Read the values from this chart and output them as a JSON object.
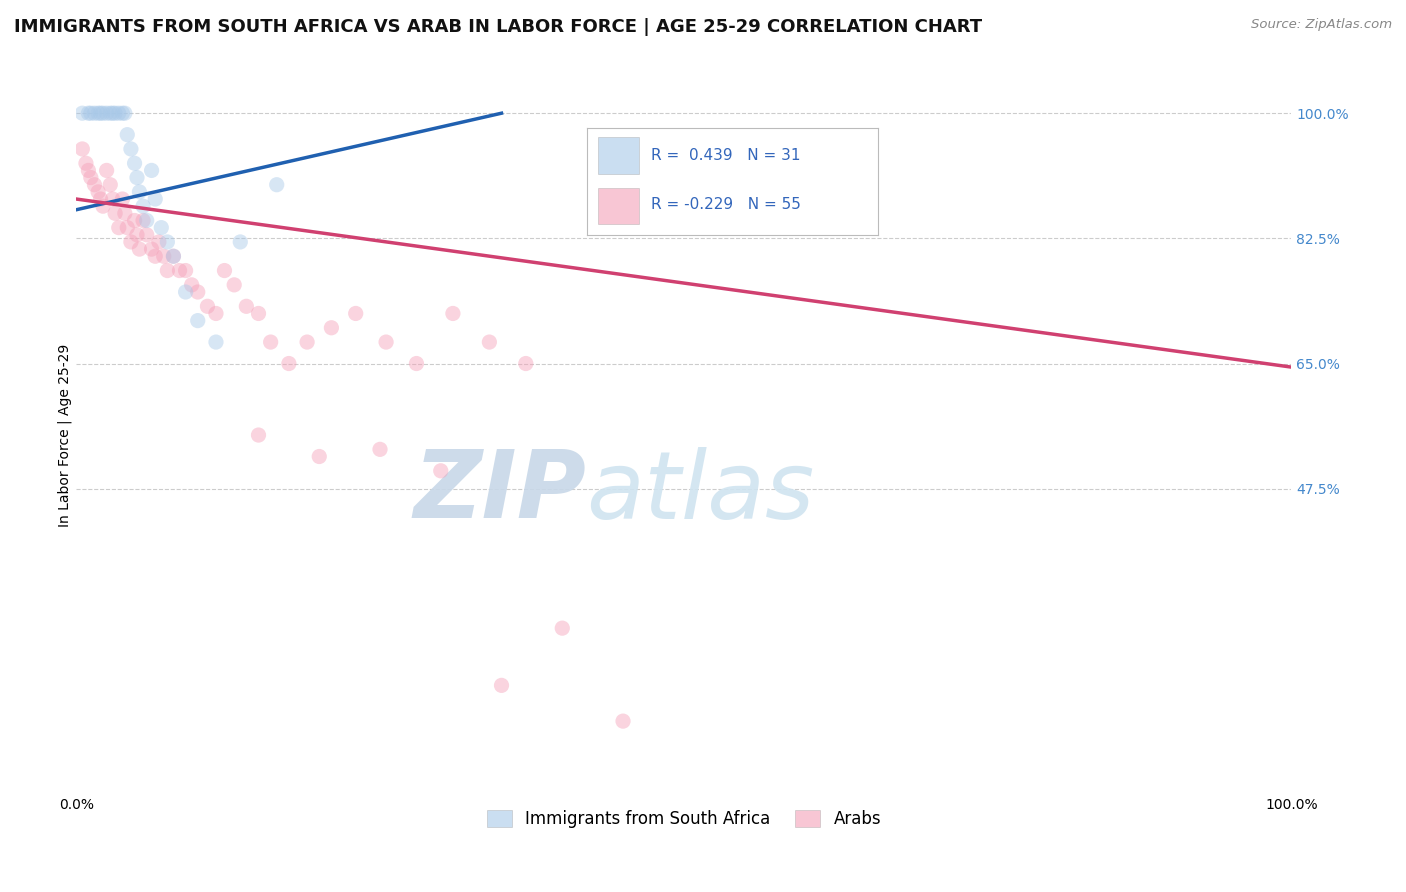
{
  "title": "IMMIGRANTS FROM SOUTH AFRICA VS ARAB IN LABOR FORCE | AGE 25-29 CORRELATION CHART",
  "source": "Source: ZipAtlas.com",
  "ylabel": "In Labor Force | Age 25-29",
  "R_blue": 0.439,
  "N_blue": 31,
  "R_pink": -0.229,
  "N_pink": 55,
  "blue_color": "#a8c8e8",
  "pink_color": "#f4a0b8",
  "blue_line_color": "#2060b0",
  "pink_line_color": "#d04070",
  "legend_blue_label": "Immigrants from South Africa",
  "legend_pink_label": "Arabs",
  "blue_scatter_x": [
    0.005,
    0.01,
    0.012,
    0.015,
    0.018,
    0.02,
    0.022,
    0.025,
    0.028,
    0.03,
    0.032,
    0.035,
    0.038,
    0.04,
    0.042,
    0.045,
    0.048,
    0.05,
    0.052,
    0.055,
    0.058,
    0.062,
    0.065,
    0.07,
    0.075,
    0.08,
    0.09,
    0.1,
    0.115,
    0.135,
    0.165
  ],
  "blue_scatter_y": [
    1.0,
    1.0,
    1.0,
    1.0,
    1.0,
    1.0,
    1.0,
    1.0,
    1.0,
    1.0,
    1.0,
    1.0,
    1.0,
    1.0,
    0.97,
    0.95,
    0.93,
    0.91,
    0.89,
    0.87,
    0.85,
    0.92,
    0.88,
    0.84,
    0.82,
    0.8,
    0.75,
    0.71,
    0.68,
    0.82,
    0.9
  ],
  "pink_scatter_x": [
    0.005,
    0.008,
    0.01,
    0.012,
    0.015,
    0.018,
    0.02,
    0.022,
    0.025,
    0.028,
    0.03,
    0.032,
    0.035,
    0.038,
    0.04,
    0.042,
    0.045,
    0.048,
    0.05,
    0.052,
    0.055,
    0.058,
    0.062,
    0.065,
    0.068,
    0.072,
    0.075,
    0.08,
    0.085,
    0.09,
    0.095,
    0.1,
    0.108,
    0.115,
    0.122,
    0.13,
    0.14,
    0.15,
    0.16,
    0.175,
    0.19,
    0.21,
    0.23,
    0.255,
    0.28,
    0.31,
    0.34,
    0.37,
    0.15,
    0.2,
    0.25,
    0.3,
    0.35,
    0.4,
    0.45
  ],
  "pink_scatter_y": [
    0.95,
    0.93,
    0.92,
    0.91,
    0.9,
    0.89,
    0.88,
    0.87,
    0.92,
    0.9,
    0.88,
    0.86,
    0.84,
    0.88,
    0.86,
    0.84,
    0.82,
    0.85,
    0.83,
    0.81,
    0.85,
    0.83,
    0.81,
    0.8,
    0.82,
    0.8,
    0.78,
    0.8,
    0.78,
    0.78,
    0.76,
    0.75,
    0.73,
    0.72,
    0.78,
    0.76,
    0.73,
    0.72,
    0.68,
    0.65,
    0.68,
    0.7,
    0.72,
    0.68,
    0.65,
    0.72,
    0.68,
    0.65,
    0.55,
    0.52,
    0.53,
    0.5,
    0.2,
    0.28,
    0.15
  ],
  "xlim": [
    0.0,
    1.0
  ],
  "ylim": [
    0.05,
    1.05
  ],
  "ytick_positions": [
    0.475,
    0.65,
    0.825,
    1.0
  ],
  "ytick_labels": [
    "47.5%",
    "65.0%",
    "82.5%",
    "100.0%"
  ],
  "xtick_positions": [
    0.0,
    1.0
  ],
  "xtick_labels": [
    "0.0%",
    "100.0%"
  ],
  "grid_color": "#cccccc",
  "bg_color": "#ffffff",
  "title_fontsize": 13,
  "axis_label_fontsize": 10,
  "tick_fontsize": 10,
  "marker_size": 120,
  "marker_alpha": 0.45,
  "legend_fontsize": 12,
  "watermark_color": "#c8d8e8",
  "watermark_alpha": 0.9,
  "blue_line_start_x": 0.0,
  "blue_line_start_y": 0.865,
  "blue_line_end_x": 0.35,
  "blue_line_end_y": 1.0,
  "pink_line_start_x": 0.0,
  "pink_line_start_y": 0.88,
  "pink_line_end_x": 1.0,
  "pink_line_end_y": 0.645
}
